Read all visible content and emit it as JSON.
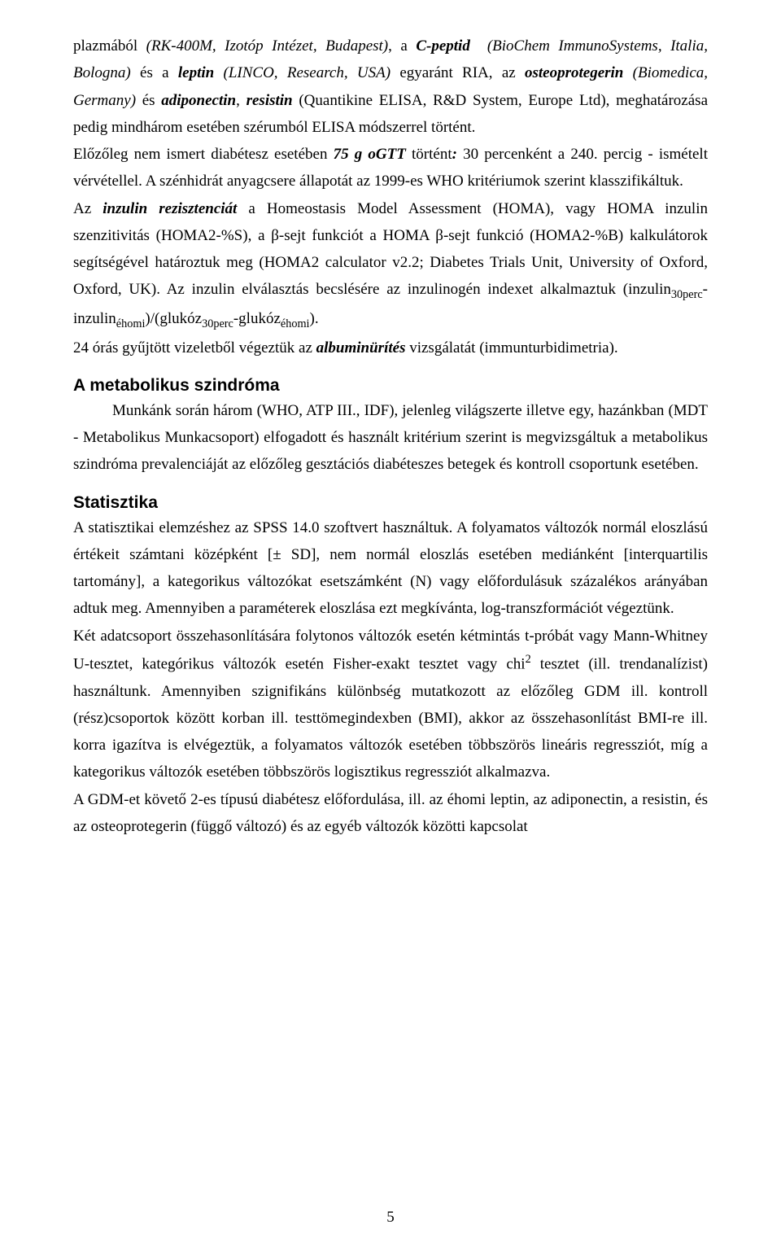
{
  "para1_html": "plazmából <i>(RK-400M, Izotóp Intézet, Budapest)</i>, a <b><i>C-peptid</i></b> &nbsp;<i>(BioChem ImmunoSystems, Italia, Bologna)</i> és a <b><i>leptin</i></b> <i>(LINCO, Research, USA)</i> egyaránt RIA, az <b><i>osteoprotegerin</i></b> <i>(Biomedica, Germany)</i> és <b><i>adiponectin</i></b>, <b><i>resistin</i></b> (Quantikine ELISA, R&amp;D System, Europe Ltd), meghatározása pedig mindhárom esetében szérumból ELISA módszerrel történt.",
  "para2_html": "Előzőleg nem ismert diabétesz esetében <b><i>75 g oGTT</i></b> történt<b><i>:</i></b> 30 percenként a 240. percig - ismételt vérvétellel. A szénhidrát anyagcsere állapotát az 1999-es WHO kritériumok szerint klasszifikáltuk.",
  "para3_html": "Az <b><i>inzulin rezisztenciát</i></b> a Homeostasis Model Assessment (HOMA), vagy HOMA inzulin szenzitivitás (HOMA2-%S), a β-sejt funkciót a HOMA β-sejt funkció (HOMA2-%B) kalkulátorok segítségével határoztuk meg (HOMA2 calculator v2.2; Diabetes Trials Unit, University of Oxford, Oxford, UK). Az inzulin elválasztás becslésére az inzulinogén indexet alkalmaztuk (inzulin<sub>30perc</sub>-inzulin<sub>éhomi</sub>)/(glukóz<sub>30perc</sub>-glukóz<sub>éhomi</sub>).",
  "para4_html": "24 órás gyűjtött vizeletből végeztük az <b><i>albuminürítés</i></b> vizsgálatát (immunturbidimetria).",
  "heading1": "A metabolikus szindróma",
  "para5_html": "Munkánk során három (WHO, ATP III., IDF), jelenleg világszerte illetve egy, hazánkban (MDT - Metabolikus Munkacsoport) elfogadott és használt kritérium szerint is megvizsgáltuk a metabolikus szindróma prevalenciáját az előzőleg gesztációs diabéteszes betegek és kontroll csoportunk esetében.",
  "heading2": "Statisztika",
  "para6_html": "A statisztikai elemzéshez az SPSS 14.0 szoftvert használtuk. A folyamatos változók normál eloszlású értékeit számtani középként [± SD], nem normál eloszlás esetében mediánként [interquartilis tartomány], a kategorikus változókat esetszámként (N) vagy előfordulásuk százalékos arányában adtuk meg. Amennyiben a paraméterek eloszlása ezt megkívánta, log-transzformációt végeztünk.",
  "para7_html": "Két adatcsoport összehasonlítására folytonos változók esetén kétmintás t-próbát vagy Mann-Whitney U-tesztet, kategórikus változók esetén Fisher-exakt tesztet vagy chi<sup>2</sup> tesztet (ill. trendanalízist) használtunk. Amennyiben szignifikáns különbség mutatkozott az előzőleg GDM ill. kontroll (rész)csoportok között korban ill. testtömegindexben (BMI), akkor az összehasonlítást BMI-re ill. korra igazítva is elvégeztük, a folyamatos változók esetében többszörös lineáris regressziót, míg a kategorikus változók esetében többszörös logisztikus regressziót alkalmazva.",
  "para8_html": "A GDM-et követő 2-es típusú diabétesz előfordulása, ill. az éhomi leptin, az adiponectin, a resistin, és az osteoprotegerin (függő változó) és az egyéb változók közötti kapcsolat",
  "page_number": "5"
}
